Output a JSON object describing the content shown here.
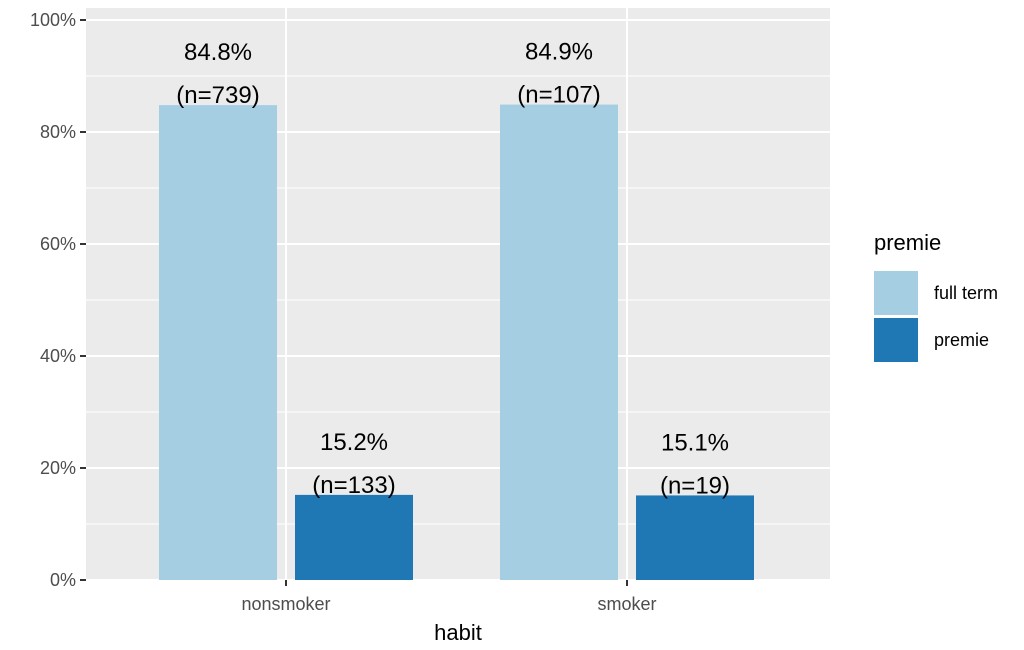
{
  "chart_data": {
    "type": "bar",
    "xlabel": "habit",
    "ylabel": "",
    "ylim": [
      0,
      1
    ],
    "y_ticks": [
      "0%",
      "20%",
      "40%",
      "60%",
      "80%",
      "100%"
    ],
    "categories": [
      "nonsmoker",
      "smoker"
    ],
    "legend_title": "premie",
    "legend_position": "right",
    "grid": true,
    "series": [
      {
        "name": "full term",
        "color": "#a6cee3",
        "values": [
          0.848,
          0.849
        ],
        "pct_labels": [
          "84.8%",
          "84.9%"
        ],
        "n_labels": [
          "(n=739)",
          "(n=107)"
        ]
      },
      {
        "name": "premie",
        "color": "#1f78b4",
        "values": [
          0.152,
          0.151
        ],
        "pct_labels": [
          "15.2%",
          "15.1%"
        ],
        "n_labels": [
          "(n=133)",
          "(n=19)"
        ]
      }
    ]
  }
}
